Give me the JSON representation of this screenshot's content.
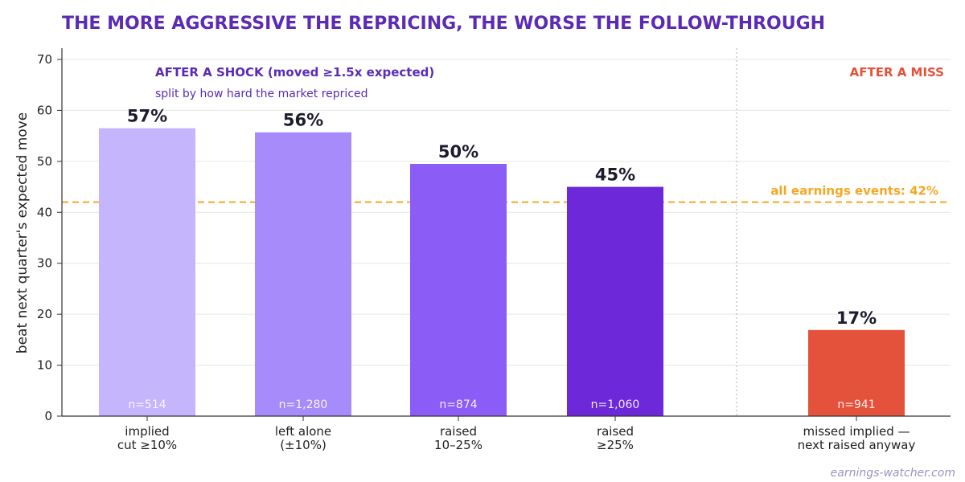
{
  "chart_data": {
    "type": "bar",
    "title": "THE MORE AGGRESSIVE THE REPRICING, THE WORSE THE FOLLOW-THROUGH",
    "ylabel": "beat next quarter's expected move",
    "xlabel": "",
    "ylim": [
      0,
      72
    ],
    "yticks": [
      "0",
      "10",
      "20",
      "30",
      "40",
      "50",
      "60",
      "70"
    ],
    "grid": true,
    "bars": [
      {
        "category": [
          "implied",
          "cut ≥10%"
        ],
        "value": 56.5,
        "label": "57%",
        "n": "n=514",
        "color": "#c4b5fd",
        "group": "shock"
      },
      {
        "category": [
          "left alone",
          "(±10%)"
        ],
        "value": 55.7,
        "label": "56%",
        "n": "n=1,280",
        "color": "#a78bfa",
        "group": "shock"
      },
      {
        "category": [
          "raised",
          "10–25%"
        ],
        "value": 49.5,
        "label": "50%",
        "n": "n=874",
        "color": "#8b5cf6",
        "group": "shock"
      },
      {
        "category": [
          "raised",
          "≥25%"
        ],
        "value": 45.0,
        "label": "45%",
        "n": "n=1,060",
        "color": "#6d28d9",
        "group": "shock"
      },
      {
        "category": [
          "missed implied —",
          "next raised anyway"
        ],
        "value": 16.9,
        "label": "17%",
        "n": "n=941",
        "color": "#e4523b",
        "group": "miss"
      }
    ],
    "reference_line": {
      "value": 42,
      "label": "all earnings events: 42%",
      "color": "#f5a623"
    },
    "annotations": {
      "shock_heading": "AFTER A SHOCK (moved ≥1.5x expected)",
      "shock_subheading": "split by how hard the market repriced",
      "miss_heading": "AFTER A MISS"
    }
  },
  "credit": "earnings-watcher.com"
}
